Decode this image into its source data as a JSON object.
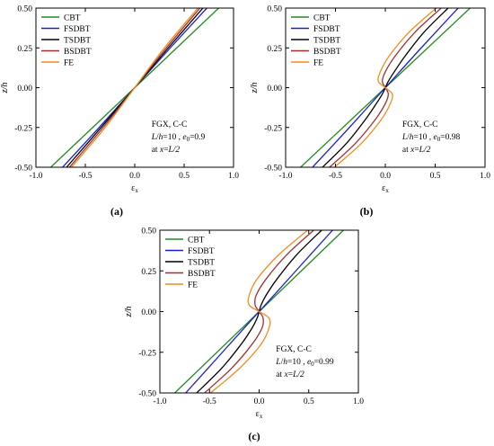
{
  "figure": {
    "panel_labels": [
      "(a)",
      "(b)",
      "(c)"
    ]
  },
  "legend_entries": [
    {
      "label": "CBT",
      "color": "#228B22"
    },
    {
      "label": "FSDBT",
      "color": "#1F1FC8"
    },
    {
      "label": "TSDBT",
      "color": "#000000"
    },
    {
      "label": "BSDBT",
      "color": "#A0302F"
    },
    {
      "label": "FE",
      "color": "#F08C1E"
    }
  ],
  "axes_text": {
    "xlabel": "εx",
    "ylabel": "z/h",
    "x_ticks": [
      "-1.0",
      "-0.5",
      "0.0",
      "0.5",
      "1.0"
    ],
    "y_ticks": [
      "0.50",
      "0.25",
      "0.00",
      "-0.25",
      "-0.50"
    ]
  },
  "chart_data": [
    {
      "type": "line",
      "xlim": [
        -1.0,
        1.0
      ],
      "ylim": [
        -0.5,
        0.5
      ],
      "xlabel": "εx",
      "ylabel": "z/h",
      "legend_position": "top-left",
      "annotation": [
        "FGX, C-C",
        "L/h=10 , e0=0.9",
        "at x=L/2"
      ],
      "series": [
        {
          "name": "CBT",
          "x": [
            -0.85,
            0.0,
            0.85
          ],
          "y": [
            -0.5,
            0.0,
            0.5
          ]
        },
        {
          "name": "FSDBT",
          "x": [
            -0.73,
            -0.36,
            0.0,
            0.36,
            0.73
          ],
          "y": [
            -0.5,
            -0.25,
            0.0,
            0.25,
            0.5
          ]
        },
        {
          "name": "TSDBT",
          "x": [
            -0.69,
            -0.34,
            0.0,
            0.34,
            0.69
          ],
          "y": [
            -0.5,
            -0.25,
            0.0,
            0.25,
            0.5
          ]
        },
        {
          "name": "BSDBT",
          "x": [
            -0.66,
            -0.32,
            0.0,
            0.32,
            0.66
          ],
          "y": [
            -0.5,
            -0.25,
            0.0,
            0.25,
            0.5
          ]
        },
        {
          "name": "FE",
          "x": [
            -0.64,
            -0.3,
            0.0,
            0.3,
            0.64
          ],
          "y": [
            -0.5,
            -0.25,
            0.0,
            0.25,
            0.5
          ]
        }
      ]
    },
    {
      "type": "line",
      "xlim": [
        -1.0,
        1.0
      ],
      "ylim": [
        -0.5,
        0.5
      ],
      "xlabel": "εx",
      "ylabel": "z/h",
      "legend_position": "top-left",
      "annotation": [
        "FGX, C-C",
        "L/h=10 , e0=0.98",
        "at x=L/2"
      ],
      "series": [
        {
          "name": "CBT",
          "x": [
            -0.85,
            0.0,
            0.85
          ],
          "y": [
            -0.5,
            0.0,
            0.5
          ]
        },
        {
          "name": "FSDBT",
          "x": [
            -0.73,
            -0.36,
            0.0,
            0.36,
            0.73
          ],
          "y": [
            -0.5,
            -0.25,
            0.0,
            0.25,
            0.5
          ]
        },
        {
          "name": "TSDBT",
          "x": [
            -0.63,
            -0.39,
            -0.2,
            -0.09,
            -0.03,
            0.0,
            0.03,
            0.09,
            0.2,
            0.39,
            0.63
          ],
          "y": [
            -0.5,
            -0.35,
            -0.2,
            -0.1,
            -0.04,
            0.0,
            0.04,
            0.1,
            0.2,
            0.35,
            0.5
          ]
        },
        {
          "name": "BSDBT",
          "x": [
            -0.56,
            -0.3,
            -0.1,
            0.0,
            0.03,
            0.0,
            -0.03,
            0.0,
            0.1,
            0.3,
            0.56
          ],
          "y": [
            -0.5,
            -0.35,
            -0.2,
            -0.1,
            -0.04,
            0.0,
            0.04,
            0.1,
            0.2,
            0.35,
            0.5
          ]
        },
        {
          "name": "FE",
          "x": [
            -0.51,
            -0.24,
            -0.04,
            0.05,
            0.07,
            0.0,
            -0.07,
            -0.05,
            0.04,
            0.24,
            0.51
          ],
          "y": [
            -0.5,
            -0.35,
            -0.2,
            -0.1,
            -0.04,
            0.0,
            0.04,
            0.1,
            0.2,
            0.35,
            0.5
          ]
        }
      ]
    },
    {
      "type": "line",
      "xlim": [
        -1.0,
        1.0
      ],
      "ylim": [
        -0.5,
        0.5
      ],
      "xlabel": "εx",
      "ylabel": "z/h",
      "legend_position": "top-left",
      "annotation": [
        "FGX, C-C",
        "L/h=10 , e0=0.99",
        "at x=L/2"
      ],
      "series": [
        {
          "name": "CBT",
          "x": [
            -0.85,
            0.0,
            0.85
          ],
          "y": [
            -0.5,
            0.0,
            0.5
          ]
        },
        {
          "name": "FSDBT",
          "x": [
            -0.74,
            -0.37,
            0.0,
            0.37,
            0.74
          ],
          "y": [
            -0.5,
            -0.25,
            0.0,
            0.25,
            0.5
          ]
        },
        {
          "name": "TSDBT",
          "x": [
            -0.63,
            -0.38,
            -0.18,
            -0.07,
            -0.02,
            0.0,
            0.02,
            0.07,
            0.18,
            0.38,
            0.63
          ],
          "y": [
            -0.5,
            -0.35,
            -0.2,
            -0.1,
            -0.04,
            0.0,
            0.04,
            0.1,
            0.2,
            0.35,
            0.5
          ]
        },
        {
          "name": "BSDBT",
          "x": [
            -0.55,
            -0.28,
            -0.07,
            0.03,
            0.04,
            0.0,
            -0.04,
            -0.03,
            0.07,
            0.28,
            0.55
          ],
          "y": [
            -0.5,
            -0.35,
            -0.2,
            -0.1,
            -0.04,
            0.0,
            0.04,
            0.1,
            0.2,
            0.35,
            0.5
          ]
        },
        {
          "name": "FE",
          "x": [
            -0.49,
            -0.2,
            0.02,
            0.1,
            0.1,
            0.0,
            -0.1,
            -0.1,
            -0.02,
            0.2,
            0.49
          ],
          "y": [
            -0.5,
            -0.35,
            -0.2,
            -0.1,
            -0.04,
            0.0,
            0.04,
            0.1,
            0.2,
            0.35,
            0.5
          ]
        }
      ]
    }
  ]
}
